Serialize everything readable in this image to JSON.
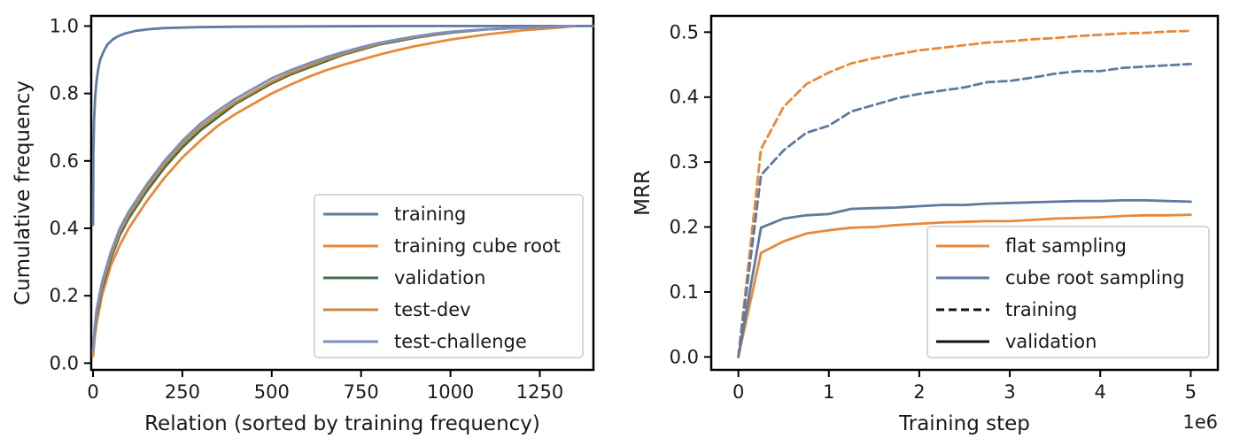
{
  "colors": {
    "orange": "#e8893a",
    "blue": "#5d7aa0",
    "green": "#3f6e49",
    "dark": "#111111",
    "axis": "#000000",
    "legend_border": "#cccccc"
  },
  "chart_data": [
    {
      "type": "line",
      "xlabel": "Relation (sorted by training frequency)",
      "ylabel": "Cumulative frequency",
      "xlim": [
        -5,
        1400
      ],
      "ylim": [
        -0.02,
        1.03
      ],
      "xticks": [
        0,
        250,
        500,
        750,
        1000,
        1250
      ],
      "xtick_labels": [
        "0",
        "250",
        "500",
        "750",
        "1000",
        "1250"
      ],
      "yticks": [
        0.0,
        0.2,
        0.4,
        0.6,
        0.8,
        1.0
      ],
      "ytick_labels": [
        "0.0",
        "0.2",
        "0.4",
        "0.6",
        "0.8",
        "1.0"
      ],
      "grid": false,
      "legend_position": "lower-right",
      "series": [
        {
          "name": "training",
          "color": "#5d7aa0",
          "x": [
            0,
            1,
            3,
            6,
            10,
            15,
            20,
            30,
            40,
            55,
            70,
            90,
            120,
            160,
            200,
            300,
            400,
            600,
            900,
            1400
          ],
          "y": [
            0.41,
            0.62,
            0.72,
            0.79,
            0.84,
            0.875,
            0.9,
            0.925,
            0.945,
            0.96,
            0.97,
            0.978,
            0.986,
            0.991,
            0.994,
            0.997,
            0.998,
            0.999,
            1.0,
            1.0
          ]
        },
        {
          "name": "training cube root",
          "color": "#e8893a",
          "x": [
            0,
            5,
            10,
            25,
            50,
            75,
            100,
            150,
            200,
            250,
            300,
            350,
            400,
            450,
            500,
            550,
            600,
            650,
            700,
            750,
            800,
            850,
            900,
            950,
            1000,
            1100,
            1200,
            1300,
            1350
          ],
          "y": [
            0.02,
            0.08,
            0.12,
            0.2,
            0.29,
            0.35,
            0.4,
            0.48,
            0.55,
            0.61,
            0.66,
            0.705,
            0.74,
            0.77,
            0.8,
            0.825,
            0.848,
            0.868,
            0.885,
            0.9,
            0.915,
            0.928,
            0.94,
            0.95,
            0.96,
            0.975,
            0.987,
            0.995,
            1.0
          ]
        },
        {
          "name": "validation",
          "color": "#3f6e49",
          "x": [
            0,
            5,
            10,
            25,
            50,
            75,
            100,
            150,
            200,
            250,
            300,
            350,
            400,
            450,
            500,
            550,
            600,
            650,
            700,
            750,
            800,
            850,
            900,
            950,
            1000,
            1100,
            1200,
            1300,
            1350
          ],
          "y": [
            0.03,
            0.09,
            0.14,
            0.22,
            0.31,
            0.38,
            0.43,
            0.51,
            0.58,
            0.64,
            0.69,
            0.73,
            0.77,
            0.8,
            0.83,
            0.855,
            0.875,
            0.895,
            0.915,
            0.93,
            0.945,
            0.955,
            0.965,
            0.973,
            0.98,
            0.99,
            0.995,
            0.998,
            1.0
          ]
        },
        {
          "name": "test-dev",
          "color": "#c98a3c",
          "x": [
            0,
            5,
            10,
            25,
            50,
            75,
            100,
            150,
            200,
            250,
            300,
            350,
            400,
            450,
            500,
            550,
            600,
            650,
            700,
            750,
            800,
            850,
            900,
            950,
            1000,
            1100,
            1200,
            1300,
            1350
          ],
          "y": [
            0.03,
            0.1,
            0.15,
            0.23,
            0.32,
            0.39,
            0.44,
            0.52,
            0.59,
            0.65,
            0.7,
            0.74,
            0.775,
            0.805,
            0.835,
            0.86,
            0.88,
            0.9,
            0.918,
            0.933,
            0.947,
            0.958,
            0.967,
            0.975,
            0.982,
            0.99,
            0.995,
            0.998,
            1.0
          ]
        },
        {
          "name": "test-challenge",
          "color": "#7b8fc0",
          "x": [
            0,
            5,
            10,
            25,
            50,
            75,
            100,
            150,
            200,
            250,
            300,
            350,
            400,
            450,
            500,
            550,
            600,
            650,
            700,
            750,
            800,
            850,
            900,
            950,
            1000,
            1100,
            1200,
            1300,
            1350
          ],
          "y": [
            0.04,
            0.11,
            0.16,
            0.24,
            0.33,
            0.4,
            0.45,
            0.53,
            0.6,
            0.66,
            0.71,
            0.75,
            0.785,
            0.815,
            0.845,
            0.868,
            0.888,
            0.907,
            0.923,
            0.937,
            0.95,
            0.96,
            0.969,
            0.977,
            0.983,
            0.99,
            0.995,
            0.998,
            1.0
          ]
        }
      ]
    },
    {
      "type": "line",
      "xlabel": "Training step",
      "ylabel": "MRR",
      "x_offset_label": "1e6",
      "xlim": [
        -0.3,
        5.3
      ],
      "ylim": [
        -0.02,
        0.525
      ],
      "xticks": [
        0,
        1,
        2,
        3,
        4,
        5
      ],
      "xtick_labels": [
        "0",
        "1",
        "2",
        "3",
        "4",
        "5"
      ],
      "yticks": [
        0.0,
        0.1,
        0.2,
        0.3,
        0.4,
        0.5
      ],
      "ytick_labels": [
        "0.0",
        "0.1",
        "0.2",
        "0.3",
        "0.4",
        "0.5"
      ],
      "grid": false,
      "legend_position": "lower-right",
      "series": [
        {
          "name": "flat sampling training",
          "color": "#e8893a",
          "dash": true,
          "x": [
            0,
            0.25,
            0.5,
            0.75,
            1.0,
            1.25,
            1.5,
            1.75,
            2.0,
            2.25,
            2.5,
            2.75,
            3.0,
            3.25,
            3.5,
            3.75,
            4.0,
            4.25,
            4.5,
            4.75,
            5.0
          ],
          "y": [
            0.0,
            0.32,
            0.385,
            0.42,
            0.438,
            0.452,
            0.46,
            0.466,
            0.472,
            0.476,
            0.48,
            0.484,
            0.486,
            0.489,
            0.491,
            0.494,
            0.496,
            0.498,
            0.499,
            0.501,
            0.502
          ]
        },
        {
          "name": "cube root sampling training",
          "color": "#5d7aa0",
          "dash": true,
          "x": [
            0,
            0.25,
            0.5,
            0.75,
            1.0,
            1.25,
            1.5,
            1.75,
            2.0,
            2.25,
            2.5,
            2.75,
            3.0,
            3.25,
            3.5,
            3.75,
            4.0,
            4.25,
            4.5,
            4.75,
            5.0
          ],
          "y": [
            0.0,
            0.28,
            0.318,
            0.345,
            0.356,
            0.378,
            0.388,
            0.398,
            0.405,
            0.41,
            0.415,
            0.423,
            0.425,
            0.43,
            0.436,
            0.44,
            0.44,
            0.445,
            0.447,
            0.449,
            0.451
          ]
        },
        {
          "name": "flat sampling validation",
          "color": "#e8893a",
          "dash": false,
          "x": [
            0,
            0.25,
            0.5,
            0.75,
            1.0,
            1.25,
            1.5,
            1.75,
            2.0,
            2.25,
            2.5,
            2.75,
            3.0,
            3.25,
            3.5,
            3.75,
            4.0,
            4.25,
            4.5,
            4.75,
            5.0
          ],
          "y": [
            0.0,
            0.16,
            0.178,
            0.19,
            0.195,
            0.199,
            0.2,
            0.203,
            0.205,
            0.207,
            0.208,
            0.209,
            0.209,
            0.211,
            0.213,
            0.214,
            0.215,
            0.217,
            0.218,
            0.218,
            0.219
          ]
        },
        {
          "name": "cube root sampling validation",
          "color": "#5d7aa0",
          "dash": false,
          "x": [
            0,
            0.25,
            0.5,
            0.75,
            1.0,
            1.25,
            1.5,
            1.75,
            2.0,
            2.25,
            2.5,
            2.75,
            3.0,
            3.25,
            3.5,
            3.75,
            4.0,
            4.25,
            4.5,
            4.75,
            5.0
          ],
          "y": [
            0.0,
            0.199,
            0.213,
            0.218,
            0.22,
            0.228,
            0.229,
            0.23,
            0.232,
            0.234,
            0.234,
            0.236,
            0.237,
            0.238,
            0.239,
            0.24,
            0.24,
            0.241,
            0.241,
            0.24,
            0.239
          ]
        }
      ],
      "legend": [
        {
          "label": "flat sampling",
          "color": "#e8893a",
          "style": "solid"
        },
        {
          "label": "cube root sampling",
          "color": "#5d7aa0",
          "style": "solid"
        },
        {
          "label": "training",
          "color": "#111111",
          "style": "dashed"
        },
        {
          "label": "validation",
          "color": "#111111",
          "style": "solid"
        }
      ]
    }
  ]
}
